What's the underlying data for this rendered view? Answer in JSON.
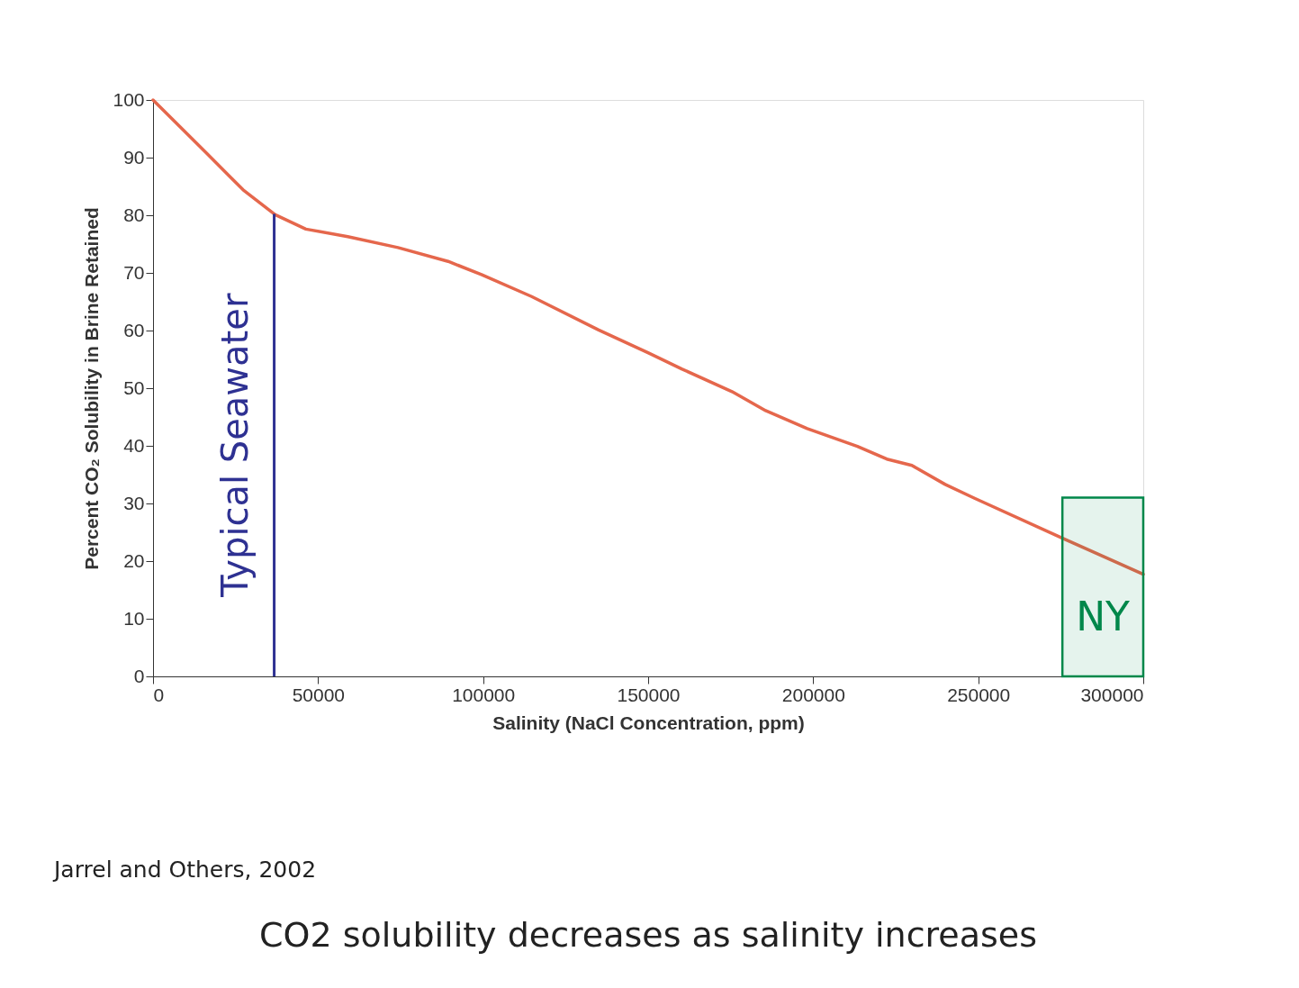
{
  "chart_data": {
    "type": "line",
    "title": "CO2 solubility decreases as salinity increases",
    "xlabel": "Salinity (NaCl Concentration, ppm)",
    "ylabel": "Percent CO₂ Solubility in Brine Retained",
    "x": [
      0,
      16000,
      27300,
      37000,
      46300,
      59000,
      74200,
      89400,
      99500,
      114700,
      135000,
      150100,
      160300,
      175400,
      185600,
      198200,
      213400,
      222300,
      229900,
      240000,
      248900,
      275400,
      300000
    ],
    "series": [
      {
        "color": "#e5674c",
        "values": [
          100,
          90.9,
          84.4,
          80.1,
          77.6,
          76.3,
          74.4,
          72,
          69.7,
          65.9,
          60.1,
          56.1,
          53.3,
          49.4,
          46.1,
          43,
          39.9,
          37.7,
          36.6,
          33.3,
          30.9,
          24,
          17.7
        ]
      }
    ],
    "xlim": [
      0,
      300000
    ],
    "xticks": [
      0,
      50000,
      100000,
      150000,
      200000,
      250000,
      300000
    ],
    "ylim": [
      0,
      100
    ],
    "yticks": [
      0,
      10,
      20,
      30,
      40,
      50,
      60,
      70,
      80,
      90,
      100
    ],
    "grid": false,
    "marker": "none",
    "line_style": "solid",
    "ref_lines": [
      {
        "axis": "x",
        "value": 36700,
        "label": "Typical Seawater",
        "color": "#2e3192"
      }
    ],
    "bands": [
      {
        "axis": "x",
        "from": 275500,
        "to": 300000,
        "label": "NY",
        "color": "#00874a"
      }
    ],
    "annotations": [
      "Jarrel and Others, 2002"
    ]
  }
}
